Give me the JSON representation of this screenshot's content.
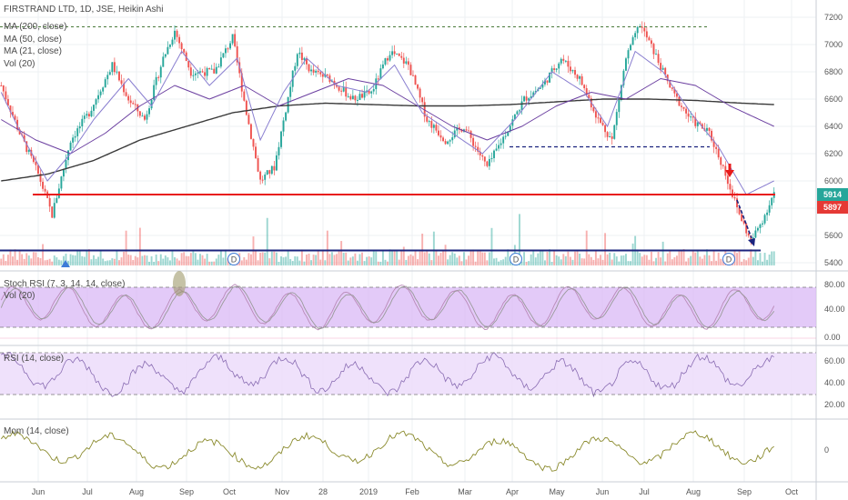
{
  "colors": {
    "up": "#26a69a",
    "down": "#ef5350",
    "ma200": "#3a3a3a",
    "ma50": "#6b3fa0",
    "ma21": "#8a7fd0",
    "support_red": "#e81a1a",
    "navy": "#1a237e",
    "stoch_band": "#d9b8f5",
    "rsi_band": "#ecdcfa",
    "mom": "#8b8b2e",
    "grid": "#eef0f3"
  },
  "labels": {
    "main": "FIRSTRAND LTD, 1D, JSE, Heikin Ashi",
    "ma200": "MA (200, close)",
    "ma50": "MA (50, close)",
    "ma21": "MA (21, close)",
    "vol": "Vol (20)",
    "stoch": "Stoch RSI (7, 3, 14, 14, close)",
    "vol2": "Vol (20)",
    "rsi": "RSI (14, close)",
    "mom": "Mom (14, close)",
    "tag_last": "5914",
    "tag_prev": "5897",
    "dividend": "D"
  },
  "chart_data": {
    "type": "candlestick",
    "x_ticks": [
      "Jun",
      "Jul",
      "Aug",
      "Sep",
      "Oct",
      "Nov",
      "28",
      "2019",
      "Feb",
      "Mar",
      "Apr",
      "May",
      "Jun",
      "Jul",
      "Aug",
      "Sep",
      "Oct"
    ],
    "price": {
      "y_ticks": [
        5400,
        5600,
        5800,
        6000,
        6200,
        6400,
        6600,
        6800,
        7000,
        7200
      ],
      "ylim": [
        5380,
        7260
      ],
      "last": 5914,
      "prev": 5897,
      "key_path": [
        [
          0,
          6700
        ],
        [
          8,
          6350
        ],
        [
          16,
          6050
        ],
        [
          22,
          5750
        ],
        [
          30,
          6300
        ],
        [
          38,
          6500
        ],
        [
          48,
          6850
        ],
        [
          55,
          6600
        ],
        [
          62,
          6450
        ],
        [
          70,
          6900
        ],
        [
          75,
          7100
        ],
        [
          82,
          6800
        ],
        [
          92,
          6800
        ],
        [
          100,
          7050
        ],
        [
          106,
          6500
        ],
        [
          112,
          6000
        ],
        [
          118,
          6100
        ],
        [
          128,
          6950
        ],
        [
          134,
          6800
        ],
        [
          142,
          6750
        ],
        [
          152,
          6600
        ],
        [
          160,
          6650
        ],
        [
          168,
          6950
        ],
        [
          176,
          6850
        ],
        [
          184,
          6450
        ],
        [
          192,
          6300
        ],
        [
          200,
          6400
        ],
        [
          210,
          6100
        ],
        [
          218,
          6350
        ],
        [
          226,
          6600
        ],
        [
          234,
          6700
        ],
        [
          242,
          6900
        ],
        [
          250,
          6750
        ],
        [
          258,
          6450
        ],
        [
          264,
          6300
        ],
        [
          270,
          6900
        ],
        [
          276,
          7150
        ],
        [
          282,
          6950
        ],
        [
          290,
          6650
        ],
        [
          298,
          6450
        ],
        [
          306,
          6350
        ],
        [
          312,
          6100
        ],
        [
          318,
          5800
        ],
        [
          324,
          5550
        ],
        [
          330,
          5750
        ],
        [
          334,
          5914
        ]
      ],
      "ma200_path": [
        [
          0,
          6000
        ],
        [
          20,
          6050
        ],
        [
          40,
          6150
        ],
        [
          60,
          6300
        ],
        [
          80,
          6400
        ],
        [
          100,
          6500
        ],
        [
          120,
          6550
        ],
        [
          140,
          6570
        ],
        [
          160,
          6560
        ],
        [
          180,
          6550
        ],
        [
          200,
          6550
        ],
        [
          220,
          6560
        ],
        [
          240,
          6580
        ],
        [
          260,
          6600
        ],
        [
          280,
          6600
        ],
        [
          300,
          6590
        ],
        [
          320,
          6570
        ],
        [
          334,
          6560
        ]
      ],
      "ma50_path": [
        [
          0,
          6450
        ],
        [
          15,
          6300
        ],
        [
          30,
          6200
        ],
        [
          45,
          6350
        ],
        [
          60,
          6550
        ],
        [
          75,
          6700
        ],
        [
          90,
          6600
        ],
        [
          105,
          6700
        ],
        [
          120,
          6550
        ],
        [
          135,
          6650
        ],
        [
          150,
          6750
        ],
        [
          165,
          6700
        ],
        [
          180,
          6550
        ],
        [
          195,
          6400
        ],
        [
          210,
          6300
        ],
        [
          225,
          6400
        ],
        [
          240,
          6550
        ],
        [
          255,
          6650
        ],
        [
          270,
          6600
        ],
        [
          285,
          6750
        ],
        [
          300,
          6700
        ],
        [
          315,
          6550
        ],
        [
          334,
          6400
        ]
      ],
      "ma21_path": [
        [
          0,
          6650
        ],
        [
          10,
          6300
        ],
        [
          20,
          6000
        ],
        [
          30,
          6200
        ],
        [
          40,
          6450
        ],
        [
          55,
          6750
        ],
        [
          65,
          6550
        ],
        [
          78,
          6950
        ],
        [
          90,
          6700
        ],
        [
          102,
          6900
        ],
        [
          112,
          6300
        ],
        [
          122,
          6650
        ],
        [
          132,
          6900
        ],
        [
          145,
          6700
        ],
        [
          158,
          6650
        ],
        [
          170,
          6850
        ],
        [
          182,
          6500
        ],
        [
          195,
          6350
        ],
        [
          208,
          6200
        ],
        [
          222,
          6450
        ],
        [
          238,
          6800
        ],
        [
          252,
          6650
        ],
        [
          262,
          6400
        ],
        [
          274,
          6950
        ],
        [
          286,
          6800
        ],
        [
          298,
          6500
        ],
        [
          310,
          6250
        ],
        [
          322,
          5900
        ],
        [
          334,
          6000
        ]
      ],
      "top_line": 7130,
      "support_line": 5900,
      "mid_dashed_line": 6250,
      "bottom_line": 5490
    },
    "stoch": {
      "y_ticks": [
        "80.00",
        "40.00",
        "0.00"
      ],
      "upper": 80,
      "lower": 20
    },
    "rsi": {
      "y_ticks": [
        "60.00",
        "40.00",
        "20.00"
      ],
      "upper": 70,
      "lower": 30
    },
    "mom": {
      "y_ticks": [
        "0"
      ]
    }
  }
}
